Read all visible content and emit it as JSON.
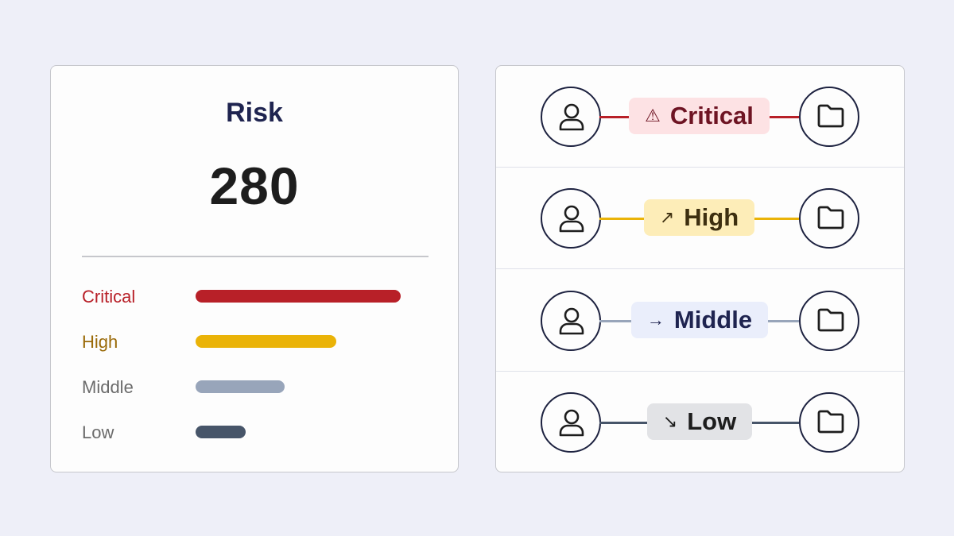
{
  "risk_panel": {
    "title": "Risk",
    "score": "280",
    "levels": [
      {
        "label": "Critical",
        "fraction": 1.0,
        "color": "#b82028",
        "label_color": "#b82028"
      },
      {
        "label": "High",
        "fraction": 0.686,
        "color": "#eab308",
        "label_color": "#9a6a08"
      },
      {
        "label": "Middle",
        "fraction": 0.434,
        "color": "#98a5ba",
        "label_color": "#6b6b6b"
      },
      {
        "label": "Low",
        "fraction": 0.244,
        "color": "#475569",
        "label_color": "#6b6b6b"
      }
    ]
  },
  "flow_panel": {
    "rows": [
      {
        "label": "Critical",
        "icon": "warning-icon",
        "glyph": "⚠",
        "pill_bg": "#fde2e4",
        "text_color": "#6e1423",
        "line_color": "#b82028"
      },
      {
        "label": "High",
        "icon": "arrow-up-right-icon",
        "glyph": "↗",
        "pill_bg": "#fdedb8",
        "text_color": "#3d2f10",
        "line_color": "#eab308"
      },
      {
        "label": "Middle",
        "icon": "arrow-right-icon",
        "glyph": "→",
        "pill_bg": "#eaeefb",
        "text_color": "#1f2450",
        "line_color": "#98a5ba"
      },
      {
        "label": "Low",
        "icon": "arrow-down-right-icon",
        "glyph": "↘",
        "pill_bg": "#e2e3e6",
        "text_color": "#1d1d1d",
        "line_color": "#475569"
      }
    ]
  }
}
